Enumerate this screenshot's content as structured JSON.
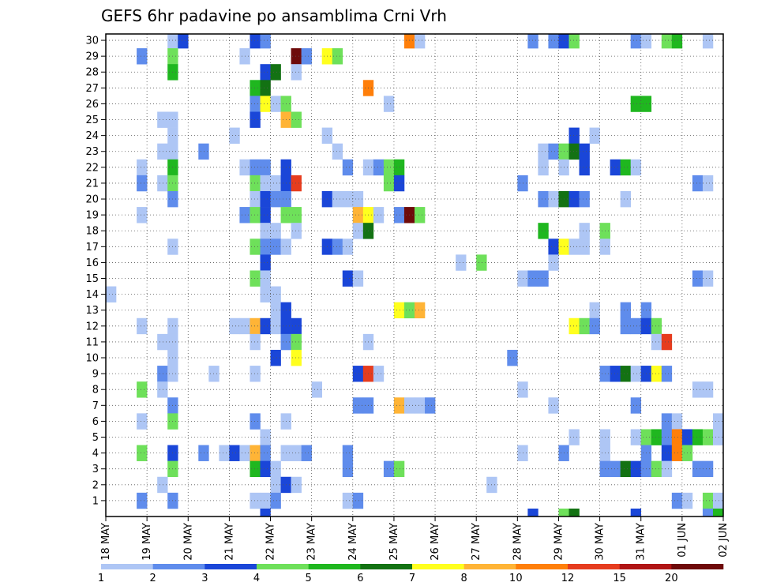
{
  "chart_data": {
    "type": "heatmap",
    "title": "GEFS 6hr padavine po ansamblima Crni Vrh",
    "y_ticks": [
      "1",
      "2",
      "3",
      "4",
      "5",
      "6",
      "7",
      "8",
      "9",
      "10",
      "11",
      "12",
      "13",
      "14",
      "15",
      "16",
      "17",
      "18",
      "19",
      "20",
      "21",
      "22",
      "23",
      "24",
      "25",
      "26",
      "27",
      "28",
      "29",
      "30"
    ],
    "x_ticks": [
      "18 MAY",
      "19 MAY",
      "20 MAY",
      "21 MAY",
      "22 MAY",
      "23 MAY",
      "24 MAY",
      "25 MAY",
      "26 MAY",
      "27 MAY",
      "28 MAY",
      "29 MAY",
      "30 MAY",
      "31 MAY",
      "01 JUN",
      "02 JUN"
    ],
    "xlabel": "",
    "ylabel": "",
    "grid": true,
    "legend": {
      "position": "bottom",
      "tick_labels": [
        "1",
        "2",
        "3",
        "4",
        "5",
        "6",
        "7",
        "8",
        "10",
        "12",
        "15",
        "20"
      ],
      "colors": [
        "#aec6f5",
        "#5f8cec",
        "#1a46d8",
        "#6ee05a",
        "#1fb71f",
        "#137213",
        "#ffff1e",
        "#ffb436",
        "#ff7f0a",
        "#e63c1e",
        "#b01414",
        "#6e0a0a"
      ]
    },
    "color_levels": [
      "#aec6f5",
      "#5f8cec",
      "#1a46d8",
      "#6ee05a",
      "#1fb71f",
      "#137213",
      "#ffff1e",
      "#ffb436",
      "#ff7f0a",
      "#e63c1e",
      "#b01414",
      "#6e0a0a"
    ],
    "cell_value_note": "cells: [member, time_step(0=18 May 00z, 6h steps), color_level_index]",
    "cells": [
      [
        30,
        6,
        0
      ],
      [
        30,
        7,
        2
      ],
      [
        30,
        14,
        2
      ],
      [
        30,
        15,
        1
      ],
      [
        30,
        29,
        8
      ],
      [
        30,
        30,
        0
      ],
      [
        30,
        41,
        1
      ],
      [
        30,
        43,
        1
      ],
      [
        30,
        44,
        2
      ],
      [
        30,
        45,
        3
      ],
      [
        30,
        51,
        1
      ],
      [
        30,
        52,
        0
      ],
      [
        30,
        54,
        3
      ],
      [
        30,
        55,
        4
      ],
      [
        30,
        58,
        0
      ],
      [
        29,
        3,
        1
      ],
      [
        29,
        6,
        3
      ],
      [
        29,
        13,
        0
      ],
      [
        29,
        18,
        11
      ],
      [
        29,
        19,
        1
      ],
      [
        29,
        21,
        6
      ],
      [
        29,
        22,
        3
      ],
      [
        28,
        6,
        4
      ],
      [
        28,
        15,
        2
      ],
      [
        28,
        16,
        5
      ],
      [
        28,
        18,
        0
      ],
      [
        27,
        14,
        4
      ],
      [
        27,
        15,
        5
      ],
      [
        27,
        25,
        8
      ],
      [
        26,
        14,
        1
      ],
      [
        26,
        15,
        6
      ],
      [
        26,
        16,
        0
      ],
      [
        26,
        17,
        3
      ],
      [
        26,
        27,
        0
      ],
      [
        26,
        51,
        4
      ],
      [
        26,
        52,
        4
      ],
      [
        25,
        5,
        0
      ],
      [
        25,
        6,
        0
      ],
      [
        25,
        14,
        2
      ],
      [
        25,
        17,
        7
      ],
      [
        25,
        18,
        3
      ],
      [
        24,
        6,
        0
      ],
      [
        24,
        12,
        0
      ],
      [
        24,
        21,
        0
      ],
      [
        24,
        45,
        2
      ],
      [
        24,
        47,
        0
      ],
      [
        23,
        5,
        0
      ],
      [
        23,
        6,
        0
      ],
      [
        23,
        9,
        1
      ],
      [
        23,
        22,
        0
      ],
      [
        23,
        42,
        0
      ],
      [
        23,
        43,
        1
      ],
      [
        23,
        44,
        3
      ],
      [
        23,
        45,
        5
      ],
      [
        23,
        46,
        2
      ],
      [
        22,
        3,
        0
      ],
      [
        22,
        6,
        4
      ],
      [
        22,
        13,
        0
      ],
      [
        22,
        14,
        1
      ],
      [
        22,
        15,
        1
      ],
      [
        22,
        17,
        2
      ],
      [
        22,
        23,
        1
      ],
      [
        22,
        25,
        0
      ],
      [
        22,
        26,
        1
      ],
      [
        22,
        27,
        3
      ],
      [
        22,
        28,
        4
      ],
      [
        22,
        42,
        0
      ],
      [
        22,
        44,
        0
      ],
      [
        22,
        46,
        2
      ],
      [
        22,
        49,
        2
      ],
      [
        22,
        50,
        4
      ],
      [
        22,
        51,
        0
      ],
      [
        21,
        3,
        1
      ],
      [
        21,
        5,
        0
      ],
      [
        21,
        6,
        3
      ],
      [
        21,
        14,
        3
      ],
      [
        21,
        15,
        0
      ],
      [
        21,
        16,
        0
      ],
      [
        21,
        17,
        2
      ],
      [
        21,
        18,
        9
      ],
      [
        21,
        27,
        3
      ],
      [
        21,
        28,
        2
      ],
      [
        21,
        40,
        1
      ],
      [
        21,
        57,
        1
      ],
      [
        21,
        58,
        0
      ],
      [
        20,
        6,
        1
      ],
      [
        20,
        14,
        0
      ],
      [
        20,
        15,
        2
      ],
      [
        20,
        16,
        1
      ],
      [
        20,
        17,
        1
      ],
      [
        20,
        21,
        2
      ],
      [
        20,
        22,
        0
      ],
      [
        20,
        23,
        0
      ],
      [
        20,
        24,
        0
      ],
      [
        20,
        42,
        1
      ],
      [
        20,
        43,
        0
      ],
      [
        20,
        44,
        5
      ],
      [
        20,
        45,
        2
      ],
      [
        20,
        46,
        1
      ],
      [
        20,
        50,
        0
      ],
      [
        19,
        3,
        0
      ],
      [
        19,
        13,
        1
      ],
      [
        19,
        14,
        3
      ],
      [
        19,
        15,
        2
      ],
      [
        19,
        17,
        3
      ],
      [
        19,
        18,
        3
      ],
      [
        19,
        24,
        7
      ],
      [
        19,
        25,
        6
      ],
      [
        19,
        26,
        0
      ],
      [
        19,
        28,
        1
      ],
      [
        19,
        29,
        11
      ],
      [
        19,
        30,
        3
      ],
      [
        18,
        15,
        0
      ],
      [
        18,
        16,
        0
      ],
      [
        18,
        18,
        0
      ],
      [
        18,
        24,
        0
      ],
      [
        18,
        25,
        5
      ],
      [
        18,
        42,
        4
      ],
      [
        18,
        46,
        0
      ],
      [
        18,
        48,
        3
      ],
      [
        17,
        6,
        0
      ],
      [
        17,
        14,
        3
      ],
      [
        17,
        15,
        1
      ],
      [
        17,
        16,
        1
      ],
      [
        17,
        17,
        0
      ],
      [
        17,
        21,
        2
      ],
      [
        17,
        22,
        1
      ],
      [
        17,
        23,
        0
      ],
      [
        17,
        43,
        2
      ],
      [
        17,
        44,
        6
      ],
      [
        17,
        45,
        0
      ],
      [
        17,
        46,
        0
      ],
      [
        17,
        48,
        0
      ],
      [
        16,
        15,
        2
      ],
      [
        16,
        34,
        0
      ],
      [
        16,
        36,
        3
      ],
      [
        16,
        43,
        0
      ],
      [
        15,
        14,
        3
      ],
      [
        15,
        15,
        0
      ],
      [
        15,
        23,
        2
      ],
      [
        15,
        24,
        0
      ],
      [
        15,
        40,
        0
      ],
      [
        15,
        41,
        1
      ],
      [
        15,
        42,
        1
      ],
      [
        15,
        57,
        1
      ],
      [
        15,
        58,
        0
      ],
      [
        14,
        0,
        0
      ],
      [
        14,
        15,
        0
      ],
      [
        14,
        16,
        0
      ],
      [
        13,
        16,
        0
      ],
      [
        13,
        17,
        2
      ],
      [
        13,
        28,
        6
      ],
      [
        13,
        29,
        3
      ],
      [
        13,
        30,
        7
      ],
      [
        13,
        47,
        0
      ],
      [
        13,
        50,
        1
      ],
      [
        13,
        52,
        1
      ],
      [
        12,
        3,
        0
      ],
      [
        12,
        6,
        0
      ],
      [
        12,
        12,
        0
      ],
      [
        12,
        13,
        0
      ],
      [
        12,
        14,
        7
      ],
      [
        12,
        15,
        2
      ],
      [
        12,
        16,
        0
      ],
      [
        12,
        17,
        2
      ],
      [
        12,
        18,
        2
      ],
      [
        12,
        45,
        6
      ],
      [
        12,
        46,
        3
      ],
      [
        12,
        47,
        1
      ],
      [
        12,
        50,
        1
      ],
      [
        12,
        51,
        1
      ],
      [
        12,
        52,
        2
      ],
      [
        12,
        53,
        3
      ],
      [
        11,
        5,
        0
      ],
      [
        11,
        6,
        0
      ],
      [
        11,
        14,
        0
      ],
      [
        11,
        17,
        1
      ],
      [
        11,
        18,
        3
      ],
      [
        11,
        25,
        0
      ],
      [
        11,
        53,
        0
      ],
      [
        11,
        54,
        9
      ],
      [
        10,
        6,
        0
      ],
      [
        10,
        16,
        2
      ],
      [
        10,
        18,
        6
      ],
      [
        10,
        39,
        1
      ],
      [
        9,
        5,
        1
      ],
      [
        9,
        6,
        0
      ],
      [
        9,
        10,
        0
      ],
      [
        9,
        14,
        0
      ],
      [
        9,
        24,
        2
      ],
      [
        9,
        25,
        9
      ],
      [
        9,
        26,
        0
      ],
      [
        9,
        48,
        1
      ],
      [
        9,
        49,
        2
      ],
      [
        9,
        50,
        5
      ],
      [
        9,
        51,
        0
      ],
      [
        9,
        52,
        2
      ],
      [
        9,
        53,
        6
      ],
      [
        9,
        54,
        1
      ],
      [
        8,
        3,
        3
      ],
      [
        8,
        5,
        0
      ],
      [
        8,
        20,
        0
      ],
      [
        8,
        40,
        0
      ],
      [
        8,
        57,
        0
      ],
      [
        8,
        58,
        0
      ],
      [
        7,
        6,
        1
      ],
      [
        7,
        24,
        1
      ],
      [
        7,
        25,
        1
      ],
      [
        7,
        28,
        7
      ],
      [
        7,
        29,
        0
      ],
      [
        7,
        30,
        0
      ],
      [
        7,
        31,
        1
      ],
      [
        7,
        43,
        0
      ],
      [
        7,
        51,
        1
      ],
      [
        6,
        3,
        0
      ],
      [
        6,
        6,
        3
      ],
      [
        6,
        14,
        1
      ],
      [
        6,
        17,
        0
      ],
      [
        6,
        54,
        1
      ],
      [
        6,
        55,
        0
      ],
      [
        6,
        59,
        0
      ],
      [
        5,
        15,
        0
      ],
      [
        5,
        45,
        0
      ],
      [
        5,
        48,
        0
      ],
      [
        5,
        51,
        0
      ],
      [
        5,
        52,
        3
      ],
      [
        5,
        53,
        4
      ],
      [
        5,
        54,
        1
      ],
      [
        5,
        55,
        8
      ],
      [
        5,
        56,
        2
      ],
      [
        5,
        57,
        4
      ],
      [
        5,
        58,
        3
      ],
      [
        5,
        59,
        0
      ],
      [
        4,
        3,
        3
      ],
      [
        4,
        6,
        2
      ],
      [
        4,
        9,
        1
      ],
      [
        4,
        11,
        0
      ],
      [
        4,
        12,
        2
      ],
      [
        4,
        13,
        0
      ],
      [
        4,
        14,
        7
      ],
      [
        4,
        15,
        1
      ],
      [
        4,
        17,
        0
      ],
      [
        4,
        18,
        0
      ],
      [
        4,
        19,
        1
      ],
      [
        4,
        23,
        1
      ],
      [
        4,
        40,
        0
      ],
      [
        4,
        44,
        1
      ],
      [
        4,
        48,
        0
      ],
      [
        4,
        52,
        1
      ],
      [
        4,
        54,
        2
      ],
      [
        4,
        55,
        8
      ],
      [
        4,
        56,
        3
      ],
      [
        3,
        6,
        3
      ],
      [
        3,
        14,
        4
      ],
      [
        3,
        15,
        2
      ],
      [
        3,
        16,
        0
      ],
      [
        3,
        23,
        1
      ],
      [
        3,
        27,
        1
      ],
      [
        3,
        28,
        3
      ],
      [
        3,
        48,
        1
      ],
      [
        3,
        49,
        1
      ],
      [
        3,
        50,
        5
      ],
      [
        3,
        51,
        2
      ],
      [
        3,
        52,
        1
      ],
      [
        3,
        53,
        3
      ],
      [
        3,
        54,
        0
      ],
      [
        3,
        57,
        1
      ],
      [
        3,
        58,
        1
      ],
      [
        2,
        5,
        0
      ],
      [
        2,
        16,
        0
      ],
      [
        2,
        17,
        2
      ],
      [
        2,
        18,
        0
      ],
      [
        2,
        37,
        0
      ],
      [
        1,
        3,
        1
      ],
      [
        1,
        6,
        1
      ],
      [
        1,
        14,
        0
      ],
      [
        1,
        15,
        0
      ],
      [
        1,
        16,
        1
      ],
      [
        1,
        23,
        0
      ],
      [
        1,
        24,
        1
      ],
      [
        1,
        55,
        1
      ],
      [
        1,
        56,
        0
      ],
      [
        1,
        58,
        3
      ],
      [
        1,
        59,
        0
      ],
      [
        0,
        15,
        2
      ],
      [
        0,
        41,
        2
      ],
      [
        0,
        44,
        3
      ],
      [
        0,
        45,
        5
      ],
      [
        0,
        51,
        2
      ],
      [
        0,
        58,
        1
      ],
      [
        0,
        59,
        4
      ]
    ]
  }
}
